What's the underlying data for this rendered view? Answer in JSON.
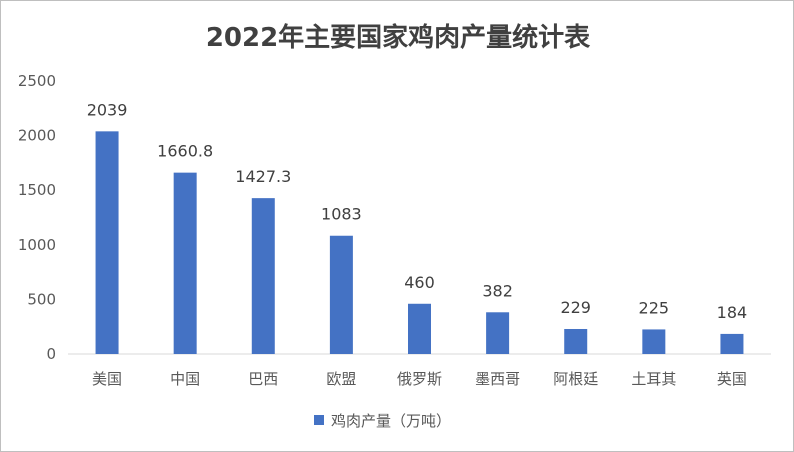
{
  "chart_data": {
    "type": "bar",
    "title": "2022年主要国家鸡肉产量统计表",
    "categories": [
      "美国",
      "中国",
      "巴西",
      "欧盟",
      "俄罗斯",
      "墨西哥",
      "阿根廷",
      "土耳其",
      "英国"
    ],
    "series": [
      {
        "name": "鸡肉产量（万吨）",
        "values": [
          2039,
          1660.8,
          1427.3,
          1083,
          460,
          382,
          229,
          225,
          184
        ],
        "labels": [
          "2039",
          "1660.8",
          "1427.3",
          "1083",
          "460",
          "382",
          "229",
          "225",
          "184"
        ]
      }
    ],
    "yticks": [
      "0",
      "500",
      "1000",
      "1500",
      "2000",
      "2500"
    ],
    "ylim": [
      0,
      2500
    ],
    "xlabel": "",
    "ylabel": "",
    "grid": false,
    "legend_position": "bottom",
    "bar_color": "#4472c4",
    "axis_color": "#d9d9d9"
  }
}
